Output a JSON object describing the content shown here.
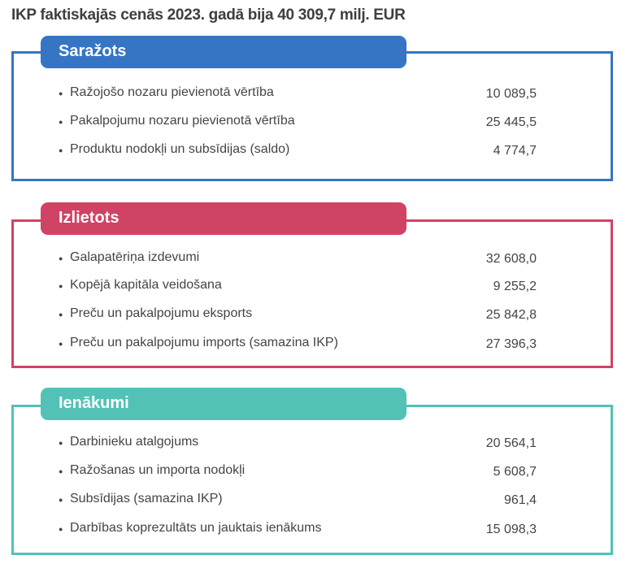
{
  "title": "IKP faktiskajās cenās 2023. gadā bija 40 309,7 milj. EUR",
  "sections": [
    {
      "name": "Saražots",
      "color": "#3575C4",
      "rows": [
        {
          "label": "Ražojošo nozaru pievienotā vērtība",
          "value": "10 089,5"
        },
        {
          "label": "Pakalpojumu nozaru pievienotā vērtība",
          "value": "25 445,5"
        },
        {
          "label": "Produktu nodokļi un subsīdijas (saldo)",
          "value": "4 774,7"
        }
      ]
    },
    {
      "name": "Izlietots",
      "color": "#D04364",
      "rows": [
        {
          "label": "Galapatēriņa izdevumi",
          "value": "32 608,0"
        },
        {
          "label": "Kopējā kapitāla veidošana",
          "value": "9 255,2"
        },
        {
          "label": "Preču un pakalpojumu eksports",
          "value": "25 842,8"
        },
        {
          "label": "Preču un pakalpojumu imports (samazina IKP)",
          "value": "27 396,3"
        }
      ]
    },
    {
      "name": "Ienākumi",
      "color": "#52C2B6",
      "rows": [
        {
          "label": "Darbinieku atalgojums",
          "value": "20 564,1"
        },
        {
          "label": "Ražošanas un importa nodokļi",
          "value": "5 608,7"
        },
        {
          "label": "Subsīdijas (samazina IKP)",
          "value": "961,4"
        },
        {
          "label": "Darbības koprezultāts un jauktais ienākums",
          "value": "15 098,3"
        }
      ]
    }
  ]
}
